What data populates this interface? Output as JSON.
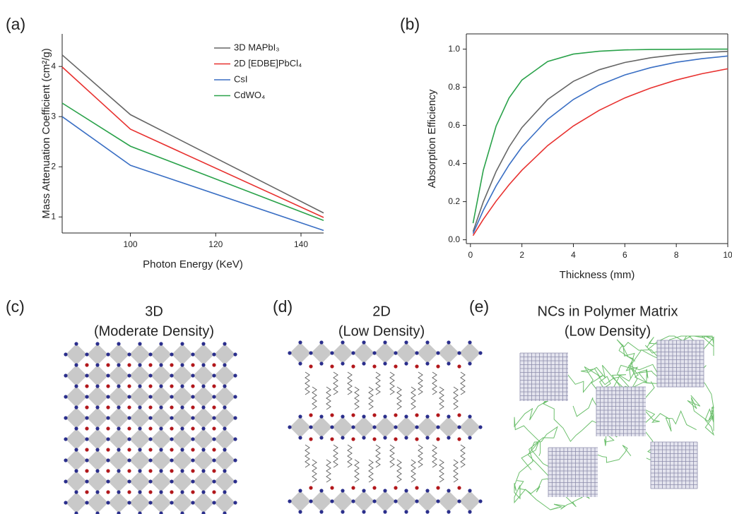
{
  "chart_data": [
    {
      "type": "line",
      "annotations": [
        "(a)"
      ],
      "x_label": "Photon Energy (KeV)",
      "y_label": "Mass Attenuation Coefficient (cm²/g)",
      "x": [
        84,
        100,
        145.3
      ],
      "series": [
        {
          "name": "3D MAPbI₃",
          "color": "#666666",
          "values": [
            4.23,
            3.04,
            1.08
          ]
        },
        {
          "name": "2D [EDBE]PbCl₄",
          "color": "#e8312f",
          "values": [
            3.99,
            2.75,
            0.99
          ]
        },
        {
          "name": "CsI",
          "color": "#3a6fc4",
          "values": [
            3.0,
            2.03,
            0.73
          ]
        },
        {
          "name": "CdWO₄",
          "color": "#2aa24a",
          "values": [
            3.27,
            2.41,
            0.93
          ]
        }
      ],
      "xlim": [
        84,
        145.3
      ],
      "xticks": [
        100,
        120,
        140
      ],
      "ylim": [
        0.68,
        4.65
      ],
      "yticks": [
        1,
        2,
        3,
        4
      ]
    },
    {
      "type": "line",
      "annotations": [
        "(b)"
      ],
      "x_label": "Thickness (mm)",
      "y_label": "Absorption Efficiency",
      "x": [
        0.1,
        0.5,
        1,
        1.5,
        2,
        3,
        4,
        5,
        6,
        7,
        8,
        9,
        10
      ],
      "series": [
        {
          "color": "#2aa24a",
          "values": [
            0.087,
            0.365,
            0.597,
            0.744,
            0.838,
            0.935,
            0.974,
            0.989,
            0.996,
            0.998,
            0.999,
            1.0,
            1.0
          ]
        },
        {
          "color": "#666666",
          "values": [
            0.043,
            0.199,
            0.359,
            0.487,
            0.589,
            0.736,
            0.831,
            0.892,
            0.93,
            0.955,
            0.971,
            0.982,
            0.988
          ]
        },
        {
          "color": "#3a6fc4",
          "values": [
            0.033,
            0.154,
            0.283,
            0.393,
            0.487,
            0.632,
            0.736,
            0.811,
            0.865,
            0.903,
            0.931,
            0.95,
            0.964
          ]
        },
        {
          "color": "#e8312f",
          "values": [
            0.022,
            0.107,
            0.203,
            0.289,
            0.365,
            0.494,
            0.597,
            0.679,
            0.744,
            0.796,
            0.838,
            0.871,
            0.897
          ]
        }
      ],
      "xlim": [
        -0.16,
        10
      ],
      "xticks": [
        0,
        2,
        4,
        6,
        8,
        10
      ],
      "ylim": [
        -0.02,
        1.08
      ],
      "yticks": [
        {
          "value": 0,
          "label": "0.0"
        },
        0.2,
        0.4,
        0.6,
        0.8,
        {
          "value": 1,
          "label": "1.0"
        }
      ]
    }
  ],
  "diagrams": [
    {
      "label": "(c)",
      "title": [
        "3D",
        "(Moderate Density)"
      ]
    },
    {
      "label": "(d)",
      "title": [
        "2D",
        "(Low Density)"
      ]
    },
    {
      "label": "(e)",
      "title": [
        "NCs in Polymer Matrix",
        "(Low Density)"
      ]
    }
  ]
}
